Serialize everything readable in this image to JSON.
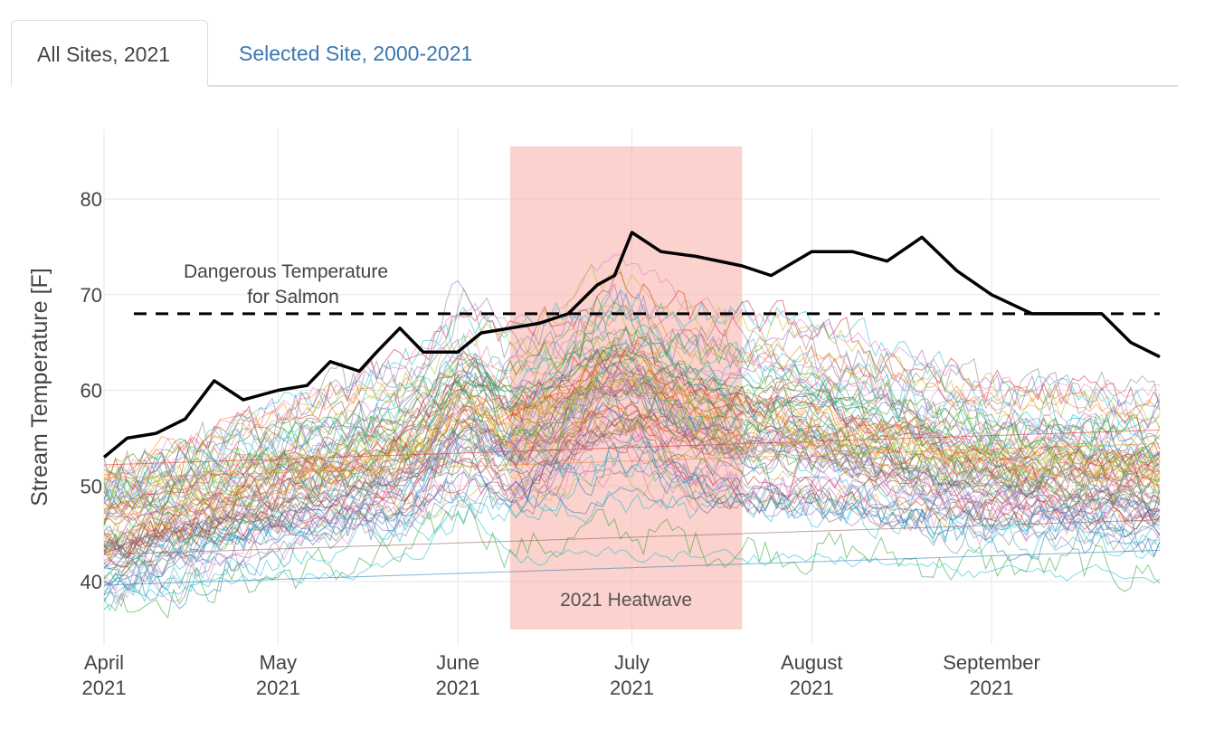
{
  "tabs": [
    {
      "label": "All Sites, 2021",
      "active": true
    },
    {
      "label": "Selected Site, 2000-2021",
      "active": false
    }
  ],
  "chart_data": {
    "type": "line",
    "ylabel": "Stream Temperature [F]",
    "xlabel": "",
    "ylim": [
      35,
      87
    ],
    "yticks": [
      40,
      50,
      60,
      70,
      80
    ],
    "xticks": [
      {
        "label1": "April",
        "label2": "2021",
        "day": 0
      },
      {
        "label1": "May",
        "label2": "2021",
        "day": 30
      },
      {
        "label1": "June",
        "label2": "2021",
        "day": 61
      },
      {
        "label1": "July",
        "label2": "2021",
        "day": 91
      },
      {
        "label1": "August",
        "label2": "2021",
        "day": 122
      },
      {
        "label1": "September",
        "label2": "2021",
        "day": 153
      }
    ],
    "x_start": "2021-04-01",
    "x_end": "2021-09-30",
    "grid": true,
    "threshold": {
      "value": 68,
      "label_line1": "Dangerous Temperature",
      "label_line2": "for Salmon",
      "color": "#000000"
    },
    "heatwave": {
      "start": "2021-06-10",
      "end": "2021-07-20",
      "ymin": 35,
      "ymax": 85.5,
      "label": "2021 Heatwave",
      "color": "#f8b4ac"
    },
    "highlight_series": {
      "color": "#000000",
      "x": [
        "2021-04-01",
        "2021-04-05",
        "2021-04-10",
        "2021-04-15",
        "2021-04-20",
        "2021-04-25",
        "2021-05-01",
        "2021-05-06",
        "2021-05-10",
        "2021-05-15",
        "2021-05-18",
        "2021-05-22",
        "2021-05-26",
        "2021-06-01",
        "2021-06-05",
        "2021-06-10",
        "2021-06-15",
        "2021-06-20",
        "2021-06-25",
        "2021-06-28",
        "2021-07-01",
        "2021-07-06",
        "2021-07-12",
        "2021-07-20",
        "2021-07-25",
        "2021-08-01",
        "2021-08-08",
        "2021-08-14",
        "2021-08-20",
        "2021-08-26",
        "2021-09-01",
        "2021-09-08",
        "2021-09-14",
        "2021-09-20",
        "2021-09-25",
        "2021-09-30"
      ],
      "y": [
        53,
        55,
        55.5,
        57,
        61,
        59,
        60,
        60.5,
        63,
        62,
        64,
        66.5,
        64,
        64,
        66,
        66.5,
        67,
        68,
        71,
        72,
        76.5,
        74.5,
        74,
        73,
        72,
        74.5,
        74.5,
        73.5,
        76,
        72.5,
        70,
        68,
        68,
        68,
        65,
        63.5
      ]
    },
    "series_colors": [
      "#1f77b4",
      "#ff7f0e",
      "#2ca02c",
      "#d62728",
      "#9467bd",
      "#8c564b",
      "#e377c2",
      "#7f7f7f",
      "#bcbd22",
      "#17becf"
    ],
    "series_count": 90
  }
}
